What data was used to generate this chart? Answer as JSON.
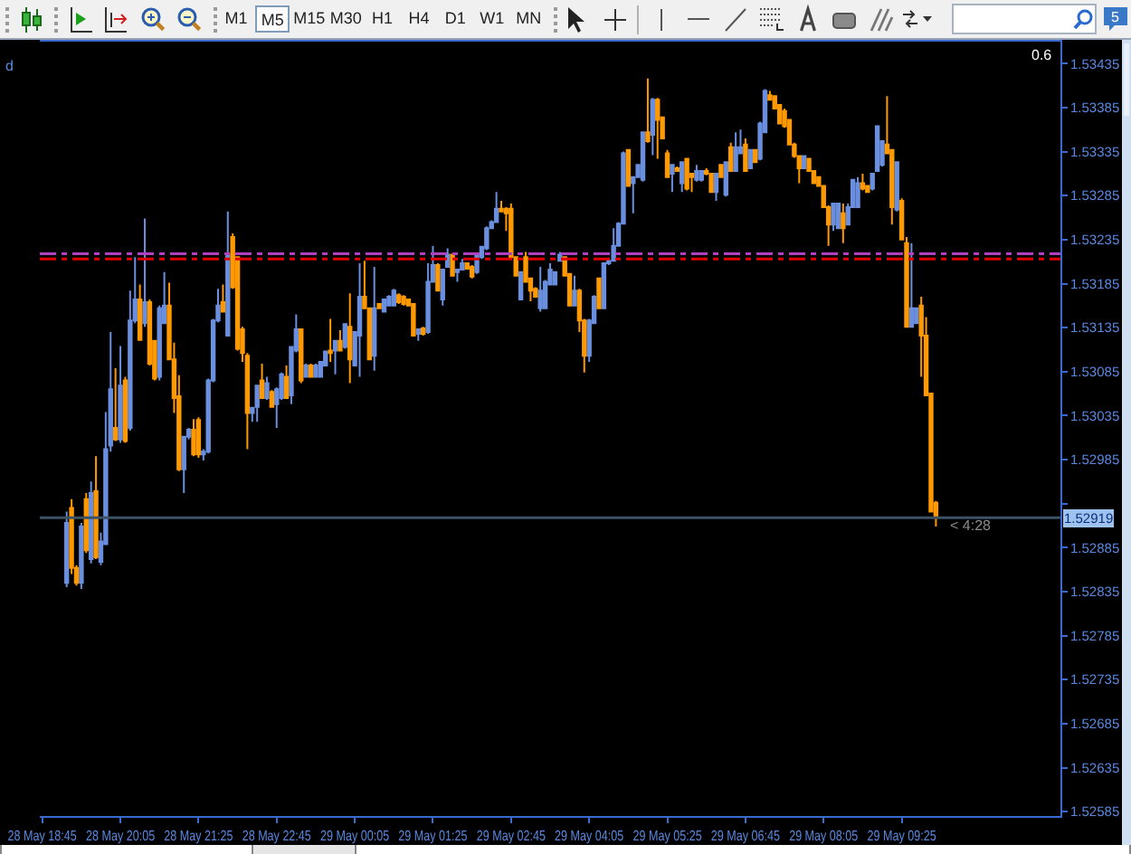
{
  "chart_data": {
    "type": "candlestick",
    "categories": [
      "28 May 18:45",
      null,
      null,
      null,
      null,
      null,
      null,
      null,
      null,
      null,
      null,
      null,
      null,
      null,
      null,
      null,
      "28 May 20:05",
      null,
      null,
      null,
      null,
      null,
      null,
      null,
      null,
      null,
      null,
      null,
      null,
      null,
      null,
      null,
      "28 May 21:25",
      null,
      null,
      null,
      null,
      null,
      null,
      null,
      null,
      null,
      null,
      null,
      null,
      null,
      null,
      null,
      "28 May 22:45",
      null,
      null,
      null,
      null,
      null,
      null,
      null,
      null,
      null,
      null,
      null,
      null,
      null,
      null,
      null,
      "29 May 00:05",
      null,
      null,
      null,
      null,
      null,
      null,
      null,
      null,
      null,
      null,
      null,
      null,
      null,
      null,
      null,
      "29 May 01:25",
      null,
      null,
      null,
      null,
      null,
      null,
      null,
      null,
      null,
      null,
      null,
      null,
      null,
      null,
      null,
      "29 May 02:45",
      null,
      null,
      null,
      null,
      null,
      null,
      null,
      null,
      null,
      null,
      null,
      null,
      null,
      null,
      null,
      "29 May 04:05",
      null,
      null,
      null,
      null,
      null,
      null,
      null,
      null,
      null,
      null,
      null,
      null,
      null,
      null,
      null,
      "29 May 05:25",
      null,
      null,
      null,
      null,
      null,
      null,
      null,
      null,
      null,
      null,
      null,
      null,
      null,
      null,
      null,
      "29 May 06:45",
      null,
      null,
      null,
      null,
      null,
      null,
      null,
      null,
      null,
      null,
      null,
      null,
      null,
      null,
      null,
      "29 May 08:05",
      null,
      null,
      null,
      null,
      null,
      null,
      null,
      null,
      null,
      null,
      null,
      null,
      null,
      null,
      null,
      "29 May 09:25",
      null,
      null,
      null,
      null,
      null,
      null,
      null,
      null,
      null,
      null,
      null,
      null,
      null,
      null,
      null,
      null,
      null,
      null,
      null,
      null,
      null,
      null,
      null,
      null,
      null,
      null,
      null,
      null,
      null,
      null,
      null,
      null
    ],
    "ohlc": [
      null,
      null,
      null,
      null,
      null,
      [
        1.52845,
        1.52926,
        1.5284,
        1.52913
      ],
      [
        1.5293,
        1.5294,
        1.52855,
        1.52862
      ],
      [
        1.52862,
        1.52865,
        1.52842,
        1.52845
      ],
      [
        1.52845,
        1.52913,
        1.52838,
        1.52909
      ],
      [
        1.5294,
        1.52947,
        1.52879,
        1.52882
      ],
      [
        1.52872,
        1.5296,
        1.52867,
        1.52947
      ],
      [
        1.52949,
        1.52989,
        1.52872,
        1.52874
      ],
      [
        1.52869,
        1.52902,
        1.52865,
        1.52892
      ],
      [
        1.52889,
        1.53039,
        1.52888,
        1.52997
      ],
      [
        1.53001,
        1.5313,
        1.52994,
        1.53065
      ],
      [
        1.53021,
        1.53089,
        1.53006,
        1.53008
      ],
      [
        1.53008,
        1.53114,
        1.53004,
        1.53069
      ],
      [
        1.53075,
        1.53079,
        1.53004,
        1.53006
      ],
      [
        1.53021,
        1.53177,
        1.53018,
        1.53143
      ],
      [
        1.53143,
        1.53215,
        1.5314,
        1.53167
      ],
      [
        1.53167,
        1.53184,
        1.5312,
        1.53121
      ],
      [
        1.5314,
        1.53259,
        1.53136,
        1.53164
      ],
      [
        1.53164,
        1.53167,
        1.53092,
        1.53094
      ],
      [
        1.5312,
        1.53121,
        1.53075,
        1.53077
      ],
      [
        1.53079,
        1.5316,
        1.53075,
        1.53157
      ],
      [
        1.5314,
        1.53198,
        1.53139,
        1.5316
      ],
      [
        1.5316,
        1.53186,
        1.53098,
        1.53099
      ],
      [
        1.53099,
        1.53118,
        1.53038,
        1.53055
      ],
      [
        1.53057,
        1.53081,
        1.52972,
        1.52974
      ],
      [
        1.52974,
        1.53012,
        1.52947,
        1.53011
      ],
      [
        1.53011,
        1.53021,
        1.53008,
        1.53019
      ],
      [
        1.53019,
        1.53031,
        1.52989,
        1.52991
      ],
      [
        1.5303,
        1.53033,
        1.52987,
        1.52991
      ],
      [
        1.52991,
        1.52997,
        1.52984,
        1.52994
      ],
      [
        1.52994,
        1.53077,
        1.52992,
        1.53075
      ],
      [
        1.53075,
        1.53145,
        1.53073,
        1.53143
      ],
      [
        1.53143,
        1.53179,
        1.53141,
        1.5316
      ],
      [
        1.53164,
        1.53184,
        1.53152,
        1.53153
      ],
      [
        1.53126,
        1.53267,
        1.53125,
        1.53218
      ],
      [
        1.53238,
        1.53242,
        1.53179,
        1.53181
      ],
      [
        1.53215,
        1.53216,
        1.53109,
        1.53111
      ],
      [
        1.53133,
        1.53136,
        1.53096,
        1.53106
      ],
      [
        1.53103,
        1.53106,
        1.52997,
        1.53038
      ],
      [
        1.53038,
        1.53045,
        1.53028,
        1.53044
      ],
      [
        1.53045,
        1.5307,
        1.53028,
        1.53069
      ],
      [
        1.53075,
        1.53094,
        1.53054,
        1.53055
      ],
      [
        1.53055,
        1.53079,
        1.53053,
        1.53072
      ],
      [
        1.53062,
        1.53064,
        1.53044,
        1.53045
      ],
      [
        1.53048,
        1.53067,
        1.53021,
        1.53065
      ],
      [
        1.53055,
        1.53084,
        1.53053,
        1.53082
      ],
      [
        1.53079,
        1.53092,
        1.53054,
        1.53055
      ],
      [
        1.53058,
        1.53114,
        1.53048,
        1.53113
      ],
      [
        1.53109,
        1.5315,
        1.53107,
        1.53133
      ],
      [
        1.53133,
        1.53134,
        1.53072,
        1.53075
      ],
      [
        1.53079,
        1.53094,
        1.53078,
        1.53092
      ],
      [
        1.53092,
        1.53094,
        1.53078,
        1.53079
      ],
      [
        1.53079,
        1.53094,
        1.53078,
        1.53092
      ],
      [
        1.53079,
        1.53097,
        1.53078,
        1.53096
      ],
      [
        1.53092,
        1.53109,
        1.53091,
        1.53108
      ],
      [
        1.53109,
        1.53145,
        1.53096,
        1.53106
      ],
      [
        1.53109,
        1.53121,
        1.53082,
        1.5312
      ],
      [
        1.5312,
        1.53132,
        1.53108,
        1.53109
      ],
      [
        1.53113,
        1.5314,
        1.53111,
        1.53139
      ],
      [
        1.53136,
        1.53174,
        1.53072,
        1.53099
      ],
      [
        1.53092,
        1.53131,
        1.53091,
        1.5313
      ],
      [
        1.53126,
        1.53208,
        1.53079,
        1.5317
      ],
      [
        1.5317,
        1.53211,
        1.53156,
        1.53157
      ],
      [
        1.53157,
        1.53158,
        1.53098,
        1.53099
      ],
      [
        1.53103,
        1.53204,
        1.53086,
        1.53157
      ],
      [
        1.53162,
        1.53163,
        1.53156,
        1.53157
      ],
      [
        1.53153,
        1.53168,
        1.53152,
        1.53167
      ],
      [
        1.5316,
        1.53172,
        1.53159,
        1.5317
      ],
      [
        1.5316,
        1.53179,
        1.53159,
        1.53177
      ],
      [
        1.53172,
        1.53174,
        1.53162,
        1.53164
      ],
      [
        1.5317,
        1.53172,
        1.5316,
        1.53162
      ],
      [
        1.53167,
        1.53168,
        1.53159,
        1.5316
      ],
      [
        1.53162,
        1.53163,
        1.53125,
        1.53126
      ],
      [
        1.53128,
        1.53134,
        1.5312,
        1.53133
      ],
      [
        1.53134,
        1.53136,
        1.53126,
        1.53128
      ],
      [
        1.5313,
        1.53208,
        1.53128,
        1.53187
      ],
      [
        1.53187,
        1.53228,
        1.53186,
        1.53206
      ],
      [
        1.53206,
        1.53208,
        1.53176,
        1.53177
      ],
      [
        1.53167,
        1.53202,
        1.5316,
        1.53201
      ],
      [
        1.53204,
        1.53225,
        1.53203,
        1.53218
      ],
      [
        1.53218,
        1.53219,
        1.53193,
        1.53194
      ],
      [
        1.53198,
        1.53202,
        1.53187,
        1.53201
      ],
      [
        1.53201,
        1.53213,
        1.532,
        1.53208
      ],
      [
        1.53208,
        1.53209,
        1.53201,
        1.53202
      ],
      [
        1.53204,
        1.53206,
        1.53191,
        1.53193
      ],
      [
        1.53198,
        1.53219,
        1.53196,
        1.53218
      ],
      [
        1.53215,
        1.53228,
        1.53213,
        1.53227
      ],
      [
        1.53225,
        1.5325,
        1.53223,
        1.53248
      ],
      [
        1.53248,
        1.53257,
        1.53247,
        1.53255
      ],
      [
        1.53255,
        1.53289,
        1.53254,
        1.5327
      ],
      [
        1.5327,
        1.53279,
        1.53266,
        1.53267
      ],
      [
        1.5327,
        1.53272,
        1.53245,
        1.53265
      ],
      [
        1.5327,
        1.53276,
        1.53213,
        1.53215
      ],
      [
        1.53215,
        1.53216,
        1.53193,
        1.53194
      ],
      [
        1.53167,
        1.53199,
        1.53166,
        1.53198
      ],
      [
        1.53215,
        1.53221,
        1.53186,
        1.53187
      ],
      [
        1.53191,
        1.53192,
        1.53165,
        1.53177
      ],
      [
        1.53179,
        1.53181,
        1.53169,
        1.5317
      ],
      [
        1.53157,
        1.53204,
        1.53153,
        1.53177
      ],
      [
        1.53157,
        1.53189,
        1.53156,
        1.53187
      ],
      [
        1.53184,
        1.53208,
        1.53183,
        1.53201
      ],
      [
        1.53184,
        1.53199,
        1.53183,
        1.53198
      ],
      [
        1.53211,
        1.53221,
        1.5321,
        1.53218
      ],
      [
        1.53215,
        1.53216,
        1.53193,
        1.53194
      ],
      [
        1.53196,
        1.53197,
        1.53159,
        1.5316
      ],
      [
        1.5316,
        1.53194,
        1.53159,
        1.53177
      ],
      [
        1.53177,
        1.53179,
        1.5313,
        1.53143
      ],
      [
        1.53143,
        1.53145,
        1.53084,
        1.53103
      ],
      [
        1.53103,
        1.53145,
        1.53096,
        1.53143
      ],
      [
        1.5314,
        1.53172,
        1.53139,
        1.5317
      ],
      [
        1.53191,
        1.53192,
        1.53156,
        1.53157
      ],
      [
        1.53157,
        1.53209,
        1.53156,
        1.53208
      ],
      [
        1.53208,
        1.53213,
        1.53206,
        1.53211
      ],
      [
        1.53211,
        1.53248,
        1.5321,
        1.53228
      ],
      [
        1.53228,
        1.53255,
        1.53227,
        1.53253
      ],
      [
        1.53253,
        1.53335,
        1.53252,
        1.53333
      ],
      [
        1.53337,
        1.53338,
        1.53295,
        1.53296
      ],
      [
        1.53299,
        1.53307,
        1.53265,
        1.53306
      ],
      [
        1.53306,
        1.53321,
        1.53305,
        1.5332
      ],
      [
        1.53303,
        1.53358,
        1.53301,
        1.53357
      ],
      [
        1.53357,
        1.53418,
        1.53345,
        1.53347
      ],
      [
        1.53354,
        1.53396,
        1.53331,
        1.53394
      ],
      [
        1.53394,
        1.53396,
        1.53327,
        1.53371
      ],
      [
        1.53374,
        1.53375,
        1.53349,
        1.5335
      ],
      [
        1.53333,
        1.53337,
        1.53305,
        1.53306
      ],
      [
        1.5331,
        1.53321,
        1.53289,
        1.5332
      ],
      [
        1.53316,
        1.53318,
        1.53312,
        1.53313
      ],
      [
        1.53299,
        1.53324,
        1.53289,
        1.53323
      ],
      [
        1.53327,
        1.53328,
        1.53291,
        1.53293
      ],
      [
        1.5331,
        1.53311,
        1.53289,
        1.53306
      ],
      [
        1.53303,
        1.5332,
        1.53301,
        1.53313
      ],
      [
        1.53303,
        1.53314,
        1.53301,
        1.53313
      ],
      [
        1.53313,
        1.53316,
        1.53308,
        1.5331
      ],
      [
        1.5331,
        1.53311,
        1.53288,
        1.53289
      ],
      [
        1.53289,
        1.53311,
        1.53279,
        1.5331
      ],
      [
        1.5332,
        1.53321,
        1.53305,
        1.53306
      ],
      [
        1.53286,
        1.53324,
        1.53284,
        1.53323
      ],
      [
        1.5334,
        1.53345,
        1.53312,
        1.53313
      ],
      [
        1.53313,
        1.53357,
        1.53312,
        1.5334
      ],
      [
        1.53333,
        1.5336,
        1.53332,
        1.5334
      ],
      [
        1.53343,
        1.5335,
        1.53312,
        1.53313
      ],
      [
        1.53316,
        1.53338,
        1.53315,
        1.53337
      ],
      [
        1.53337,
        1.53338,
        1.53322,
        1.53323
      ],
      [
        1.53327,
        1.53369,
        1.53325,
        1.53367
      ],
      [
        1.53357,
        1.53406,
        1.53356,
        1.53404
      ],
      [
        1.53399,
        1.53404,
        1.53393,
        1.53394
      ],
      [
        1.53398,
        1.53399,
        1.53383,
        1.53384
      ],
      [
        1.53388,
        1.53389,
        1.53366,
        1.53367
      ],
      [
        1.53381,
        1.53384,
        1.53362,
        1.53364
      ],
      [
        1.53371,
        1.53372,
        1.53342,
        1.53343
      ],
      [
        1.53343,
        1.53345,
        1.53328,
        1.5333
      ],
      [
        1.5333,
        1.53331,
        1.53299,
        1.53316
      ],
      [
        1.53316,
        1.53331,
        1.53315,
        1.5333
      ],
      [
        1.53327,
        1.53328,
        1.53312,
        1.53313
      ],
      [
        1.53313,
        1.53314,
        1.53298,
        1.53299
      ],
      [
        1.53306,
        1.53307,
        1.53295,
        1.53296
      ],
      [
        1.53296,
        1.53297,
        1.53271,
        1.53272
      ],
      [
        1.53272,
        1.53274,
        1.53228,
        1.53252
      ],
      [
        1.53252,
        1.53277,
        1.53245,
        1.53276
      ],
      [
        1.53248,
        1.53277,
        1.53247,
        1.53276
      ],
      [
        1.53265,
        1.53276,
        1.53231,
        1.53248
      ],
      [
        1.53252,
        1.53276,
        1.53251,
        1.53272
      ],
      [
        1.53272,
        1.53304,
        1.53271,
        1.53303
      ],
      [
        1.53272,
        1.53306,
        1.53271,
        1.53299
      ],
      [
        1.53299,
        1.5331,
        1.53291,
        1.53293
      ],
      [
        1.53296,
        1.53297,
        1.53288,
        1.53289
      ],
      [
        1.53293,
        1.53311,
        1.53291,
        1.5331
      ],
      [
        1.53313,
        1.53365,
        1.53312,
        1.53364
      ],
      [
        1.5332,
        1.53348,
        1.53318,
        1.53347
      ],
      [
        1.53343,
        1.53398,
        1.53332,
        1.53333
      ],
      [
        1.53337,
        1.53338,
        1.53252,
        1.53272
      ],
      [
        1.53269,
        1.53324,
        1.53267,
        1.53323
      ],
      [
        1.53279,
        1.53282,
        1.53234,
        1.53235
      ],
      [
        1.53231,
        1.53238,
        1.53135,
        1.53136
      ],
      [
        1.53136,
        1.53231,
        1.53135,
        1.53157
      ],
      [
        1.5314,
        1.53158,
        1.53139,
        1.53157
      ],
      [
        1.5316,
        1.5317,
        1.53079,
        1.53126
      ],
      [
        1.53126,
        1.53147,
        1.53057,
        1.53058
      ],
      [
        1.5306,
        1.53061,
        1.52925,
        1.52926
      ],
      [
        1.52936,
        1.52938,
        1.52909,
        1.52919
      ],
      null,
      null,
      null,
      null,
      null,
      null,
      null,
      null,
      null,
      null,
      null,
      null,
      null,
      null,
      null,
      null,
      null,
      null,
      null,
      null,
      null,
      null,
      null,
      null,
      null
    ],
    "colors": [
      null,
      null,
      null,
      null,
      null,
      "#6a8fdf",
      "#ff9900",
      "#ff9900",
      "#6a8fdf",
      "#ff9900",
      "#6a8fdf",
      "#ff9900",
      "#6a8fdf",
      "#6a8fdf",
      "#6a8fdf",
      "#ff9900",
      "#6a8fdf",
      "#ff9900",
      "#6a8fdf",
      "#6a8fdf",
      "#ff9900",
      "#6a8fdf",
      "#ff9900",
      "#ff9900",
      "#6a8fdf",
      "#6a8fdf",
      "#ff9900",
      "#ff9900",
      "#ff9900",
      "#6a8fdf",
      "#6a8fdf",
      "#ff9900",
      "#ff9900",
      "#6a8fdf",
      "#6a8fdf",
      "#6a8fdf",
      "#6a8fdf",
      "#ff9900",
      "#6a8fdf",
      "#ff9900",
      "#ff9900",
      "#ff9900",
      "#ff9900",
      "#6a8fdf",
      "#6a8fdf",
      "#ff9900",
      "#6a8fdf",
      "#ff9900",
      "#6a8fdf",
      "#6a8fdf",
      "#ff9900",
      "#6a8fdf",
      "#6a8fdf",
      "#ff9900",
      "#6a8fdf",
      "#ff9900",
      "#6a8fdf",
      "#6a8fdf",
      "#6a8fdf",
      "#ff9900",
      "#6a8fdf",
      "#ff9900",
      "#6a8fdf",
      "#ff9900",
      "#6a8fdf",
      "#6a8fdf",
      "#ff9900",
      "#ff9900",
      "#6a8fdf",
      "#ff9900",
      "#6a8fdf",
      "#6a8fdf",
      "#6a8fdf",
      "#ff9900",
      "#ff9900",
      "#ff9900",
      "#ff9900",
      "#6a8fdf",
      "#ff9900",
      "#6a8fdf",
      "#6a8fdf",
      "#ff9900",
      "#6a8fdf",
      "#6a8fdf",
      "#ff9900",
      "#6a8fdf",
      "#6a8fdf",
      "#ff9900",
      "#ff9900",
      "#6a8fdf",
      "#6a8fdf",
      "#6a8fdf",
      "#6a8fdf",
      "#6a8fdf",
      "#ff9900",
      "#ff9900",
      "#ff9900",
      "#ff9900",
      "#6a8fdf",
      "#ff9900",
      "#ff9900",
      "#ff9900",
      "#6a8fdf",
      "#6a8fdf",
      "#6a8fdf",
      "#6a8fdf",
      "#6a8fdf",
      "#ff9900",
      "#ff9900",
      "#6a8fdf",
      "#ff9900",
      "#ff9900",
      "#6a8fdf",
      "#6a8fdf",
      "#ff9900",
      "#6a8fdf",
      "#6a8fdf",
      "#6a8fdf",
      "#6a8fdf",
      "#6a8fdf",
      "#ff9900",
      "#6a8fdf",
      "#6a8fdf",
      "#6a8fdf",
      "#ff9900",
      "#6a8fdf",
      "#ff9900",
      "#ff9900",
      "#ff9900",
      "#6a8fdf",
      "#ff9900",
      "#6a8fdf",
      "#ff9900",
      "#ff9900",
      "#6a8fdf",
      "#6a8fdf",
      "#ff9900",
      "#ff9900",
      "#6a8fdf",
      "#ff9900",
      "#6a8fdf",
      "#ff9900",
      "#6a8fdf",
      "#6a8fdf",
      "#ff9900",
      "#6a8fdf",
      "#ff9900",
      "#6a8fdf",
      "#6a8fdf",
      "#ff9900",
      "#ff9900",
      "#ff9900",
      "#ff9900",
      "#ff9900",
      "#ff9900",
      "#ff9900",
      "#6a8fdf",
      "#ff9900",
      "#ff9900",
      "#ff9900",
      "#ff9900",
      "#ff9900",
      "#6a8fdf",
      "#6a8fdf",
      "#ff9900",
      "#6a8fdf",
      "#6a8fdf",
      "#6a8fdf",
      "#ff9900",
      "#ff9900",
      "#6a8fdf",
      "#6a8fdf",
      "#6a8fdf",
      "#ff9900",
      "#ff9900",
      "#6a8fdf",
      "#ff9900",
      "#ff9900",
      "#6a8fdf",
      "#6a8fdf",
      "#ff9900",
      "#ff9900",
      "#ff9900",
      "#ff9900",
      null,
      null,
      null,
      null,
      null,
      null,
      null,
      null,
      null,
      null,
      null,
      null,
      null,
      null,
      null,
      null,
      null,
      null,
      null,
      null,
      null,
      null,
      null,
      null,
      null
    ],
    "ylim": [
      1.5258,
      1.5346
    ],
    "yticks": [
      1.52585,
      1.52635,
      1.52685,
      1.52735,
      1.52785,
      1.52835,
      1.52885,
      {
        "value": 1.52935,
        "label": null
      },
      1.52985,
      1.53035,
      1.53085,
      1.53135,
      1.53185,
      1.53235,
      1.53285,
      1.53335,
      1.53385,
      1.53435
    ],
    "ref_lines": [
      {
        "axis": "y",
        "value": 1.53219,
        "color": "#b040c0",
        "line_style": "dashdot"
      },
      {
        "axis": "y",
        "value": 1.53213,
        "color": "#e00000",
        "line_style": "dashdot"
      },
      {
        "axis": "y",
        "value": 1.52919,
        "label": "1.52919",
        "color": "#3c5264",
        "line_style": "solid"
      }
    ],
    "annotations": [
      "d",
      "0.6",
      {
        "text": "< 4:28",
        "y": 1.5291
      },
      "M1",
      "M5",
      "M15",
      "M30",
      "H1",
      "H4",
      "D1",
      "W1",
      "MN",
      "5"
    ]
  }
}
